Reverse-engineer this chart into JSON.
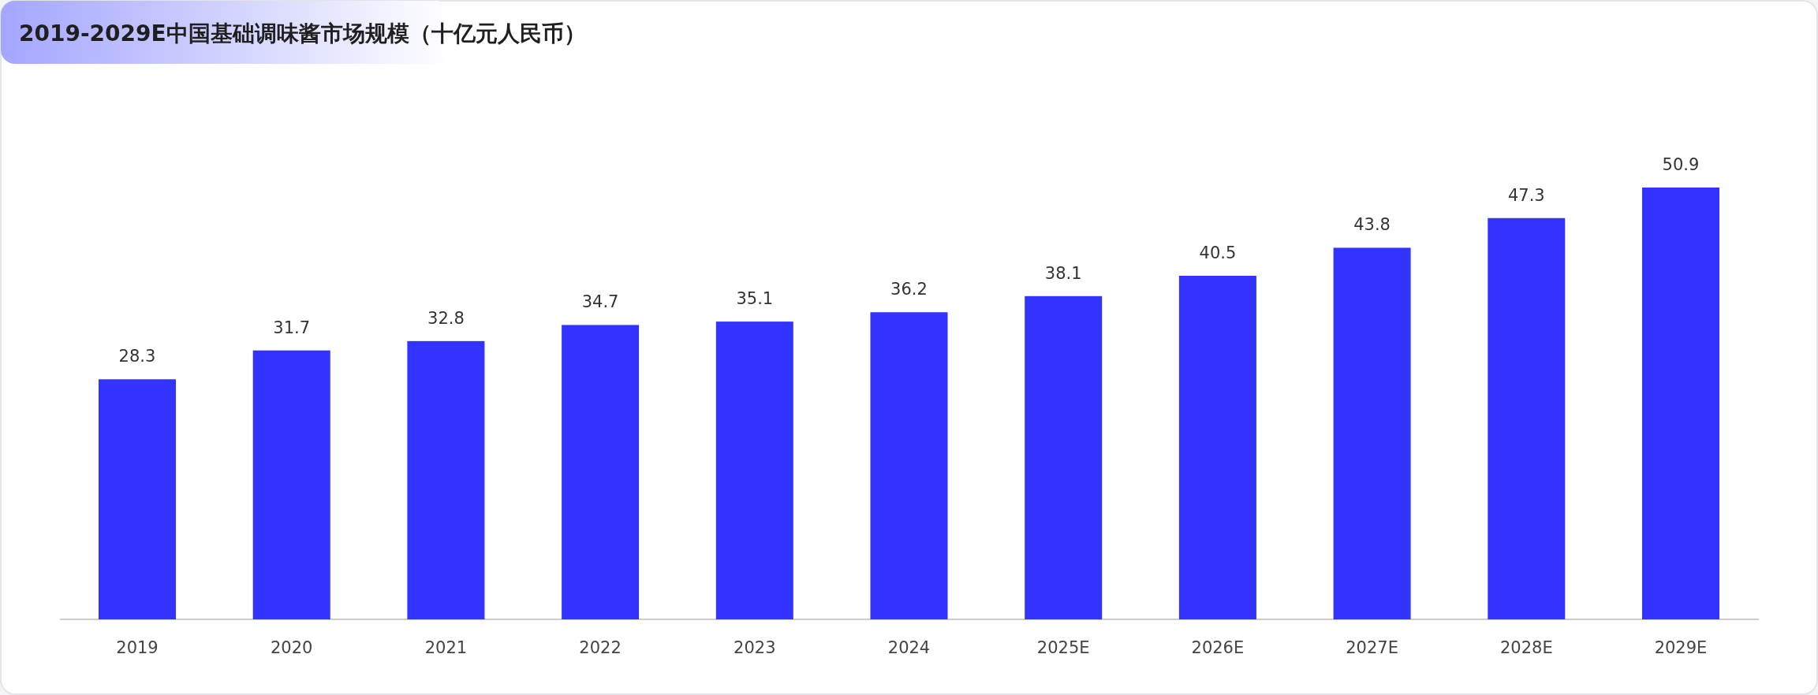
{
  "chart_data": {
    "type": "bar",
    "title": "2019-2029E中国基础调味酱市场规模（十亿元人民币）",
    "categories": [
      "2019",
      "2020",
      "2021",
      "2022",
      "2023",
      "2024",
      "2025E",
      "2026E",
      "2027E",
      "2028E",
      "2029E"
    ],
    "values": [
      28.3,
      31.7,
      32.8,
      34.7,
      35.1,
      36.2,
      38.1,
      40.5,
      43.8,
      47.3,
      50.9
    ],
    "color": "#3333ff",
    "data_labels": true
  }
}
